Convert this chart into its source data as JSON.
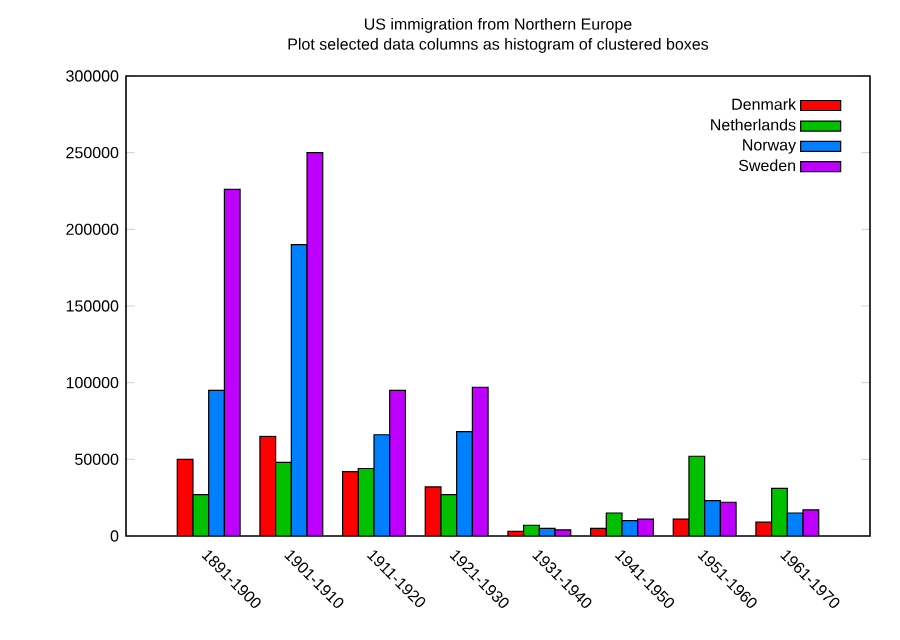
{
  "chart_data": {
    "type": "bar",
    "title": "US immigration from Northern Europe",
    "subtitle": "Plot selected data columns as histogram of clustered boxes",
    "categories": [
      "1891-1900",
      "1901-1910",
      "1911-1920",
      "1921-1930",
      "1931-1940",
      "1941-1950",
      "1951-1960",
      "1961-1970"
    ],
    "series": [
      {
        "name": "Denmark",
        "color": "#ff0000",
        "values": [
          50000,
          65000,
          42000,
          32000,
          3000,
          5000,
          11000,
          9000
        ]
      },
      {
        "name": "Netherlands",
        "color": "#00c000",
        "values": [
          27000,
          48000,
          44000,
          27000,
          7000,
          15000,
          52000,
          31000
        ]
      },
      {
        "name": "Norway",
        "color": "#0080ff",
        "values": [
          95000,
          190000,
          66000,
          68000,
          5000,
          10000,
          23000,
          15000
        ]
      },
      {
        "name": "Sweden",
        "color": "#c000ff",
        "values": [
          226000,
          250000,
          95000,
          97000,
          4000,
          11000,
          22000,
          17000
        ]
      }
    ],
    "ylim": [
      0,
      300000
    ],
    "yticks": [
      0,
      50000,
      100000,
      150000,
      200000,
      250000,
      300000
    ],
    "legend": "top right",
    "grid": false
  }
}
